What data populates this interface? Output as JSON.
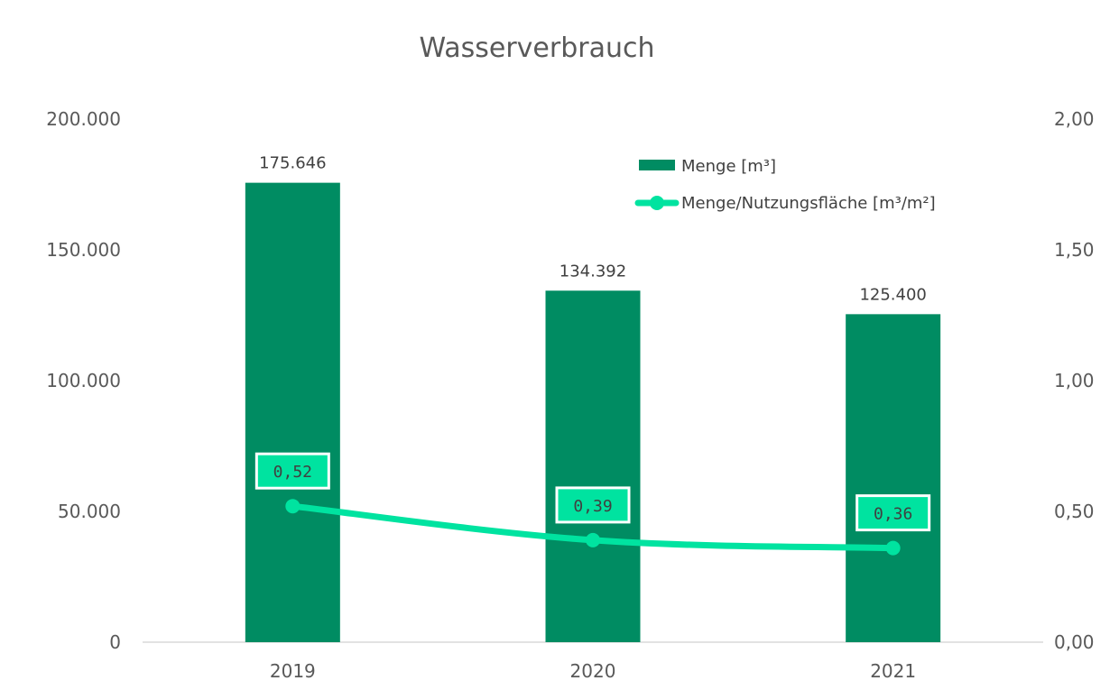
{
  "chart_data": {
    "type": "bar",
    "title": "Wasserverbrauch",
    "categories": [
      "2019",
      "2020",
      "2021"
    ],
    "series": [
      {
        "name": "Menge [m³]",
        "type": "bar",
        "axis": "left",
        "values": [
          175646,
          134392,
          125400
        ],
        "labels": [
          "175.646",
          "134.392",
          "125.400"
        ],
        "color": "#008C62"
      },
      {
        "name": "Menge/Nutzungsfläche [m³/m²]",
        "type": "line",
        "axis": "right",
        "values": [
          0.52,
          0.39,
          0.36
        ],
        "labels": [
          "0,52",
          "0,39",
          "0,36"
        ],
        "color": "#00E3A0"
      }
    ],
    "y_left": {
      "ylim": [
        0,
        200000
      ],
      "ticks": [
        0,
        50000,
        100000,
        150000,
        200000
      ],
      "tick_labels": [
        "0",
        "50.000",
        "100.000",
        "150.000",
        "200.000"
      ]
    },
    "y_right": {
      "ylim": [
        0,
        2
      ],
      "ticks": [
        0,
        0.5,
        1,
        1.5,
        2
      ],
      "tick_labels": [
        "0,00",
        "0,50",
        "1,00",
        "1,50",
        "2,00"
      ]
    },
    "grid": false,
    "legend_position": "top-right",
    "colors": {
      "bar": "#008C62",
      "line": "#00E3A0",
      "axis": "#D9D9D9",
      "text": "#595959"
    }
  }
}
